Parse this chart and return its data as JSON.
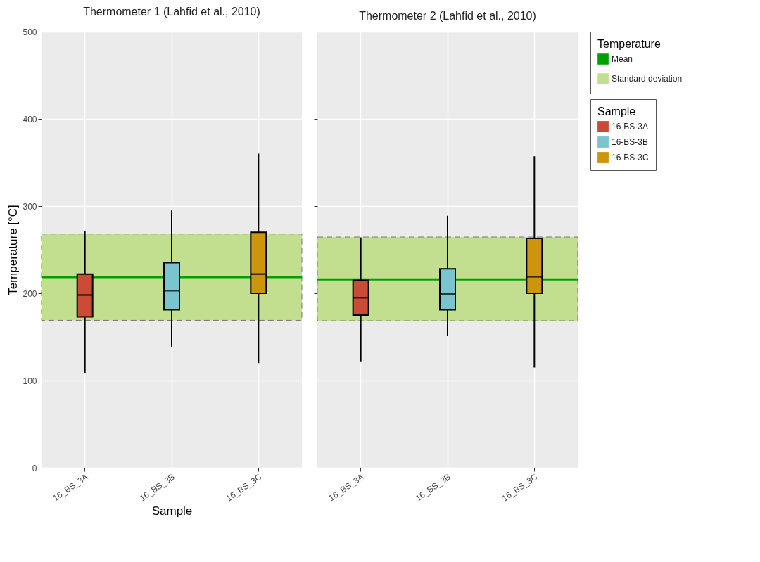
{
  "chart_data": [
    {
      "type": "box",
      "title": "Thermometer 1 (Lahfid et al., 2010)",
      "xlabel": "Sample",
      "ylabel": "Temperature [°C]",
      "categories": [
        "16_BS_3A",
        "16_BS_3B",
        "16_BS_3C"
      ],
      "series": [
        {
          "color": "#cc4b37",
          "boxes": [
            {
              "low": 108,
              "q1": 173,
              "median": 198,
              "q3": 222,
              "high": 271
            },
            null,
            null
          ]
        },
        {
          "color": "#7ac5cd",
          "boxes": [
            null,
            {
              "low": 138,
              "q1": 181,
              "median": 203,
              "q3": 235,
              "high": 295
            },
            null
          ]
        },
        {
          "color": "#cd950c",
          "boxes": [
            null,
            null,
            {
              "low": 120,
              "q1": 200,
              "median": 222,
              "q3": 270,
              "high": 360
            }
          ]
        }
      ],
      "ylim": [
        0,
        500
      ],
      "yticks": [
        0,
        100,
        200,
        300,
        400,
        500
      ],
      "grid": true,
      "ref_lines": [
        {
          "axis": "y",
          "value": 218.5,
          "color": "#00a000"
        }
      ],
      "bands": [
        {
          "axis": "y",
          "from": 169,
          "to": 268,
          "color": "#c2df8f"
        }
      ]
    },
    {
      "type": "box",
      "title": "Thermometer 2 (Lahfid et al., 2010)",
      "categories": [
        "16_BS_3A",
        "16_BS_3B",
        "16_BS_3C"
      ],
      "series": [
        {
          "name": "16-BS-3A",
          "color": "#cc4b37",
          "boxes": [
            {
              "low": 122,
              "q1": 175,
              "median": 195,
              "q3": 215,
              "high": 264
            },
            null,
            null
          ]
        },
        {
          "name": "16-BS-3B",
          "color": "#7ac5cd",
          "boxes": [
            null,
            {
              "low": 151,
              "q1": 181,
              "median": 199,
              "q3": 228,
              "high": 289
            },
            null
          ]
        },
        {
          "name": "16-BS-3C",
          "color": "#cd950c",
          "boxes": [
            null,
            null,
            {
              "low": 115,
              "q1": 200,
              "median": 219,
              "q3": 263,
              "high": 357
            }
          ]
        }
      ],
      "ylim": [
        0,
        500
      ],
      "yticks": [
        0,
        100,
        200,
        300,
        400,
        500
      ],
      "grid": true,
      "tick_labels": "x",
      "ref_lines": [
        {
          "axis": "y",
          "value": 216,
          "label": "Mean",
          "color": "#00a000"
        }
      ],
      "bands": [
        {
          "axis": "y",
          "from": 168.5,
          "to": 264.5,
          "label": "Standard deviation",
          "color": "#c2df8f"
        }
      ],
      "legend": "right",
      "legend_title": "Sample",
      "annotations": [
        "Temperature"
      ]
    }
  ]
}
